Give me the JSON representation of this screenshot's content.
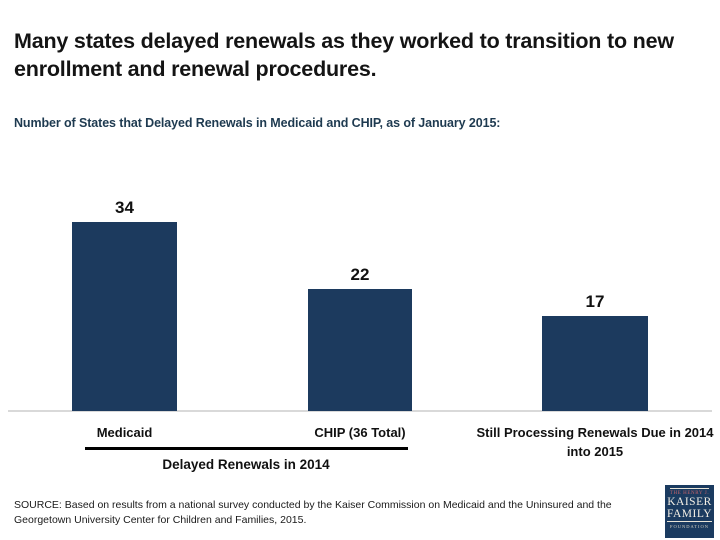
{
  "slide": {
    "title": "Many states delayed renewals as they worked to transition to new enrollment and renewal procedures.",
    "subtitle": "Number of States that Delayed Renewals in Medicaid and CHIP, as of January 2015:",
    "source_lines": [
      "SOURCE: Based on results from a national survey conducted by the Kaiser Commission on Medicaid and the Uninsured and the",
      "Georgetown University Center for Children and Families, 2015."
    ]
  },
  "chart_data": {
    "type": "bar",
    "title": "Number of States that Delayed Renewals in Medicaid and CHIP, as of January 2015:",
    "categories": [
      "Medicaid",
      "CHIP (36 Total)",
      "Still Processing Renewals Due in 2014 into 2015"
    ],
    "values": [
      34,
      22,
      17
    ],
    "data_labels": [
      "34",
      "22",
      "17"
    ],
    "group_label": "Delayed Renewals in 2014",
    "group_label_covers": [
      "Medicaid",
      "CHIP (36 Total)"
    ],
    "xlabel": "",
    "ylabel": "",
    "ylim": [
      0,
      36
    ],
    "grid": false,
    "legend": false,
    "axes_hidden": true,
    "bar_color": "#1c3a5e",
    "baseline_color": "#d9d9d9"
  },
  "logo": {
    "name": "kaiser-family-foundation",
    "line1": "THE HENRY J.",
    "line2": "KAISER",
    "line3": "FAMILY",
    "line4": "FOUNDATION",
    "background": "#1b3b60",
    "accent_text_color": "#c9636a"
  }
}
